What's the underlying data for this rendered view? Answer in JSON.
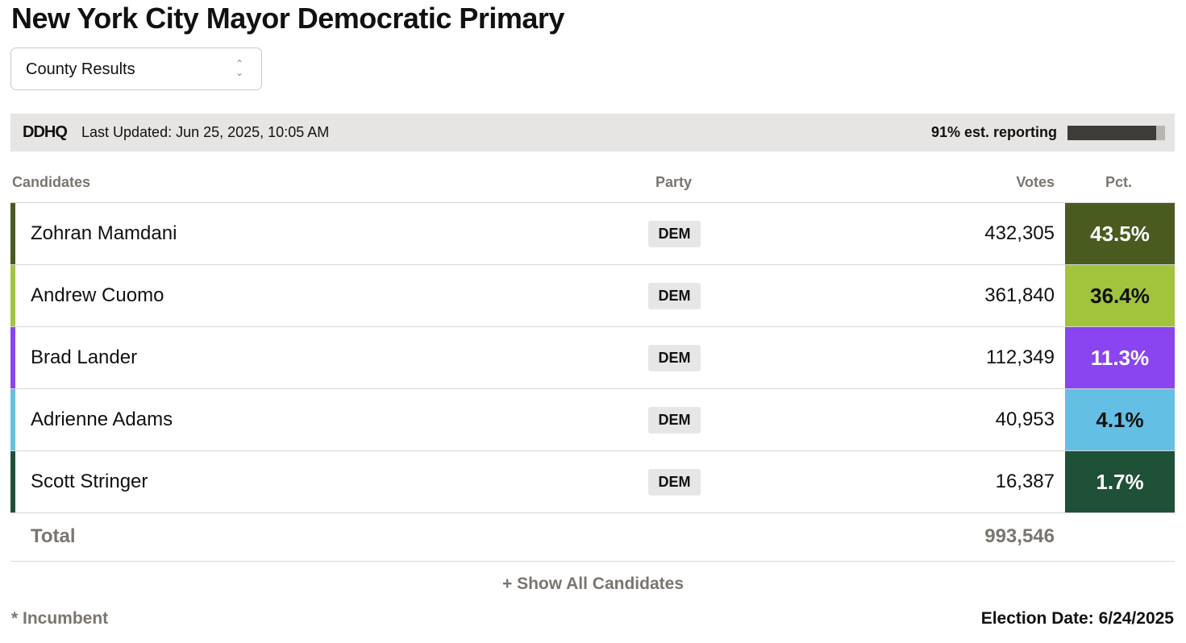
{
  "title": "New York City Mayor Democratic Primary",
  "selector": "County Results",
  "header": {
    "logo": "DDHQ",
    "last_updated": "Last Updated: Jun 25, 2025, 10:05 AM",
    "reporting": {
      "value": 91,
      "label": "91% est. reporting"
    }
  },
  "table": {
    "columns": [
      "Candidates",
      "Party",
      "Votes",
      "Pct."
    ],
    "rows": [
      {
        "name": "Zohran Mamdani",
        "party": "DEM",
        "votes": "432,305",
        "pct": "43.5%",
        "color": "#4a5b1f"
      },
      {
        "name": "Andrew Cuomo",
        "party": "DEM",
        "votes": "361,840",
        "pct": "36.4%",
        "color": "#a1c43c"
      },
      {
        "name": "Brad Lander",
        "party": "DEM",
        "votes": "112,349",
        "pct": "11.3%",
        "color": "#8a44f0"
      },
      {
        "name": "Adrienne Adams",
        "party": "DEM",
        "votes": "40,953",
        "pct": "4.1%",
        "color": "#63bfe3"
      },
      {
        "name": "Scott Stringer",
        "party": "DEM",
        "votes": "16,387",
        "pct": "1.7%",
        "color": "#1f5038"
      }
    ],
    "total": {
      "label": "Total",
      "votes": "993,546"
    }
  },
  "show_all": "+ Show All Candidates",
  "footer": {
    "note": "* Incumbent",
    "election_date": "Election Date: 6/24/2025"
  }
}
